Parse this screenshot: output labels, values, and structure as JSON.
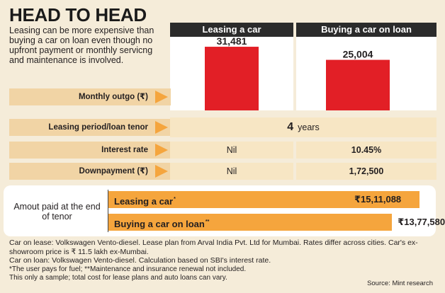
{
  "title": "HEAD TO HEAD",
  "intro": "Leasing can be more expensive than buying a car on loan even though no upfront payment or monthly servicng and maintenance is involved.",
  "columns": [
    "Leasing a car",
    "Buying a car on loan"
  ],
  "rows": {
    "monthly_outgo": {
      "label": "Monthly outgo (₹)"
    },
    "tenor": {
      "label": "Leasing period/loan tenor",
      "value_num": "4",
      "value_unit": "years"
    },
    "interest": {
      "label": "Interest rate",
      "lease": "Nil",
      "buy": "10.45%"
    },
    "downpayment": {
      "label": "Downpayment (₹)",
      "lease": "Nil",
      "buy": "1,72,500"
    }
  },
  "amount_section": {
    "label": "Amout paid at the end of tenor",
    "bars": [
      {
        "label": "Leasing a car",
        "marker": "*",
        "value_text": "₹15,11,088"
      },
      {
        "label": "Buying a car on loan",
        "marker": "**",
        "value_text": "₹13,77,580"
      }
    ]
  },
  "footnotes": [
    "Car on lease: Volkswagen Vento-diesel. Lease plan from Arval India Pvt. Ltd for Mumbai. Rates differ across cities. Car's ex-showroom price is ₹ 11.5 lakh ex-Mumbai.",
    "Car on loan: Volkswagen Vento-diesel. Calculation based on SBI's interest rate.",
    "*The user pays for fuel; **Maintenance and insurance renewal not included.",
    "This only a sample; total cost for lease plans and auto loans can vary."
  ],
  "source": "Source: Mint research",
  "colors": {
    "bar_red": "#e21f26",
    "bar_orange": "#f5a53d",
    "row_label_bg": "#f1d4a5",
    "arrow": "#f5a53d"
  },
  "chart_data": [
    {
      "type": "bar",
      "categories": [
        "Leasing a car",
        "Buying a car on loan"
      ],
      "values": [
        31481,
        25004
      ],
      "data_labels": [
        "31,481",
        "25,004"
      ],
      "ylabel": "Monthly outgo (₹)",
      "ylim": [
        0,
        35000
      ]
    },
    {
      "type": "bar",
      "orientation": "horizontal",
      "categories": [
        "Leasing a car",
        "Buying a car on loan"
      ],
      "values": [
        1511088,
        1377580
      ],
      "data_labels": [
        "₹15,11,088",
        "₹13,77,580"
      ],
      "xlabel": "Amout paid at the end of tenor"
    }
  ]
}
